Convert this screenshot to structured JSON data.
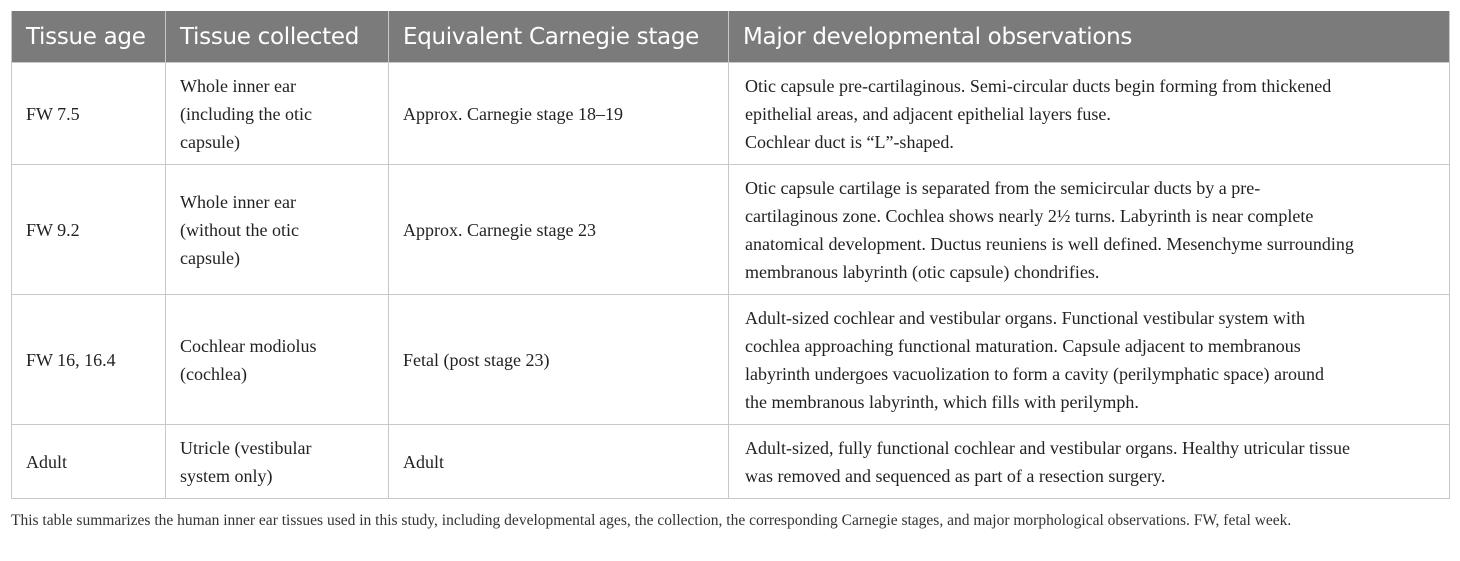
{
  "table": {
    "headers": [
      "Tissue age",
      "Tissue collected",
      "Equivalent Carnegie stage",
      "Major developmental observations"
    ],
    "rows": [
      {
        "age": "FW 7.5",
        "collected": "Whole inner ear\n(including the otic\ncapsule)",
        "stage": "Approx. Carnegie stage 18–19",
        "observations": "Otic capsule pre-cartilaginous. Semi-circular ducts begin forming from thickened\nepithelial areas, and adjacent epithelial layers fuse.\nCochlear duct is “L”-shaped."
      },
      {
        "age": "FW 9.2",
        "collected": "Whole inner ear\n(without the otic\ncapsule)",
        "stage": "Approx. Carnegie stage 23",
        "observations": "Otic capsule cartilage is separated from the semicircular ducts by a pre-\ncartilaginous zone. Cochlea shows nearly 2½ turns. Labyrinth is near complete\nanatomical development. Ductus reuniens is well defined. Mesenchyme surrounding\nmembranous labyrinth (otic capsule) chondrifies."
      },
      {
        "age": "FW 16, 16.4",
        "collected": "Cochlear modiolus\n(cochlea)",
        "stage": "Fetal (post stage 23)",
        "observations": "Adult-sized cochlear and vestibular organs. Functional vestibular system with\ncochlea approaching functional maturation. Capsule adjacent to membranous\nlabyrinth undergoes vacuolization to form a cavity (perilymphatic space) around\nthe membranous labyrinth, which fills with perilymph."
      },
      {
        "age": "Adult",
        "collected": "Utricle (vestibular\nsystem only)",
        "stage": "Adult",
        "observations": "Adult-sized, fully functional cochlear and vestibular organs. Healthy utricular tissue\nwas removed and sequenced as part of a resection surgery."
      }
    ]
  },
  "caption": "This table summarizes the human inner ear tissues used in this study, including developmental ages, the collection, the corresponding Carnegie stages, and major morphological observations. FW, fetal week."
}
